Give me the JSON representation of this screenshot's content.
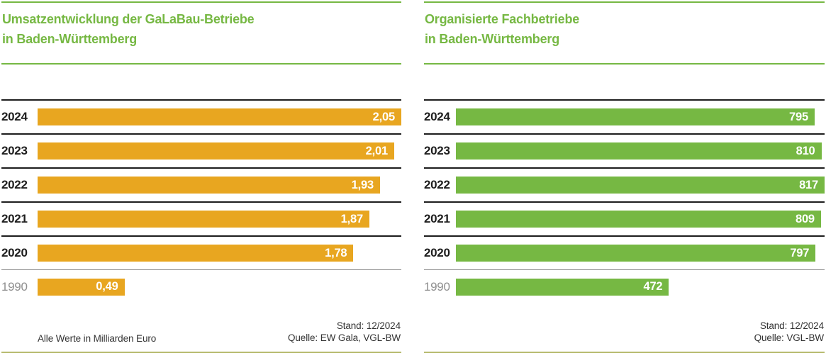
{
  "colors": {
    "title_green": "#76b843",
    "rule_black": "#1d1d1d",
    "rule_gray": "#8f8f8f",
    "rule_bottom_pale": "#b9bc72",
    "orange_bar": "#e8a620",
    "green_bar": "#76b843",
    "value_text": "#ffffff"
  },
  "chart_data": [
    {
      "type": "bar",
      "orientation": "horizontal",
      "title": "Umsatzentwicklung der GaLaBau-Betriebe in Baden-Württemberg",
      "title_line1": "Umsatzentwicklung der GaLaBau-Betriebe",
      "title_line2": "in Baden-Württemberg",
      "categories": [
        "2024",
        "2023",
        "2022",
        "2021",
        "2020",
        "1990"
      ],
      "values": [
        2.05,
        2.01,
        1.93,
        1.87,
        1.78,
        0.49
      ],
      "value_labels": [
        "2,05",
        "2,01",
        "1,93",
        "1,87",
        "1,78",
        "0,49"
      ],
      "xlim": [
        0,
        2.05
      ],
      "bar_color": "#e8a620",
      "muted_category": "1990",
      "unit_note": "Alle Werte in Milliarden Euro",
      "stand": "Stand: 12/2024",
      "quelle": "Quelle: EW Gala, VGL-BW",
      "legend": "none",
      "grid": "row-separators"
    },
    {
      "type": "bar",
      "orientation": "horizontal",
      "title": "Organisierte Fachbetriebe in Baden-Württemberg",
      "title_line1": "Organisierte Fachbetriebe",
      "title_line2": "in Baden-Württemberg",
      "categories": [
        "2024",
        "2023",
        "2022",
        "2021",
        "2020",
        "1990"
      ],
      "values": [
        795,
        810,
        817,
        809,
        797,
        472
      ],
      "value_labels": [
        "795",
        "810",
        "817",
        "809",
        "797",
        "472"
      ],
      "xlim": [
        0,
        817
      ],
      "bar_color": "#76b843",
      "muted_category": "1990",
      "unit_note": "",
      "stand": "Stand: 12/2024",
      "quelle": "Quelle: VGL-BW",
      "legend": "none",
      "grid": "row-separators"
    }
  ]
}
